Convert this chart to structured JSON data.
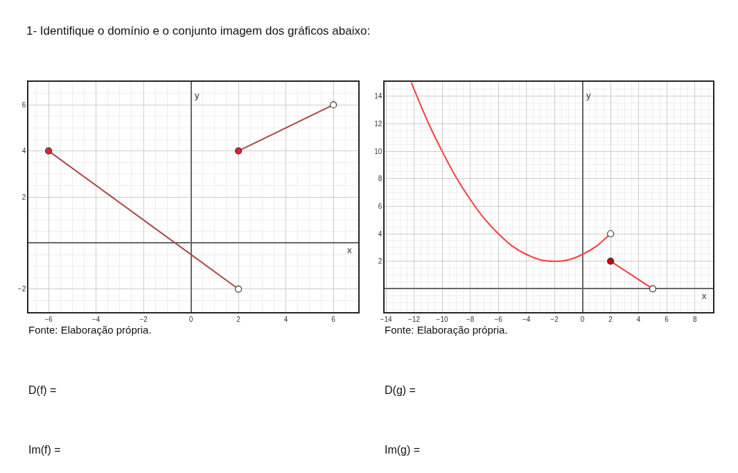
{
  "chart_data": [
    {
      "type": "line",
      "title": "1- Identifique o domínio e o conjunto imagem dos gráficos abaixo:",
      "xlabel": "x",
      "ylabel": "y",
      "xlim": [
        -6.85,
        7.05
      ],
      "ylim": [
        -3.0,
        7.0
      ],
      "xticks": [
        -6,
        -4,
        -2,
        0,
        2,
        4,
        6
      ],
      "yticks": [
        -2,
        2,
        4,
        6
      ],
      "grid": true,
      "series": [
        {
          "color": "#a84444",
          "marker": "none",
          "x": [
            -6,
            2
          ],
          "values": [
            4,
            -2
          ]
        },
        {
          "color": "#a84444",
          "marker": "none",
          "x": [
            2,
            6
          ],
          "values": [
            4,
            6
          ]
        },
        {
          "type": "scatter",
          "marker": "circle",
          "x": [
            -6,
            2,
            2,
            6
          ],
          "values": [
            4,
            -2,
            4,
            6
          ],
          "colors": [
            "#e8202a",
            "#ffffff",
            "#e8202a",
            "#ffffff"
          ]
        }
      ],
      "annotations": [
        "Fonte: Elaboração própria.",
        "D(f) =",
        "Im(f) ="
      ]
    },
    {
      "type": "line",
      "xlabel": "x",
      "ylabel": "y",
      "xlim": [
        -14.1,
        9.3
      ],
      "ylim": [
        -1.7,
        15.05
      ],
      "xticks": [
        -14,
        -12,
        -10,
        -8,
        -6,
        -4,
        -2,
        0,
        2,
        4,
        6,
        8
      ],
      "yticks": [
        2,
        4,
        6,
        8,
        10,
        12,
        14
      ],
      "grid": true,
      "series": [
        {
          "color": "#ff3b3b",
          "marker": "none",
          "x": [
            -12.2,
            -12,
            -11,
            -10,
            -9,
            -8,
            -7,
            -6,
            -5,
            -4,
            -3,
            -2,
            -1,
            0,
            1,
            2
          ],
          "values": [
            15.0,
            14.5,
            12.1,
            10,
            8.1,
            6.5,
            5.1,
            4,
            3.1,
            2.5,
            2.1,
            2,
            2.1,
            2.5,
            3.1,
            4
          ]
        },
        {
          "color": "#ff3b3b",
          "marker": "none",
          "x": [
            2,
            5
          ],
          "values": [
            2,
            0
          ]
        },
        {
          "type": "scatter",
          "marker": "circle",
          "x": [
            2,
            2,
            5
          ],
          "values": [
            4,
            2,
            0
          ],
          "colors": [
            "#ffffff",
            "#cc0000",
            "#ffffff"
          ]
        }
      ],
      "annotations": [
        "Fonte: Elaboração própria.",
        "D(g) =",
        "Im(g) ="
      ]
    }
  ]
}
